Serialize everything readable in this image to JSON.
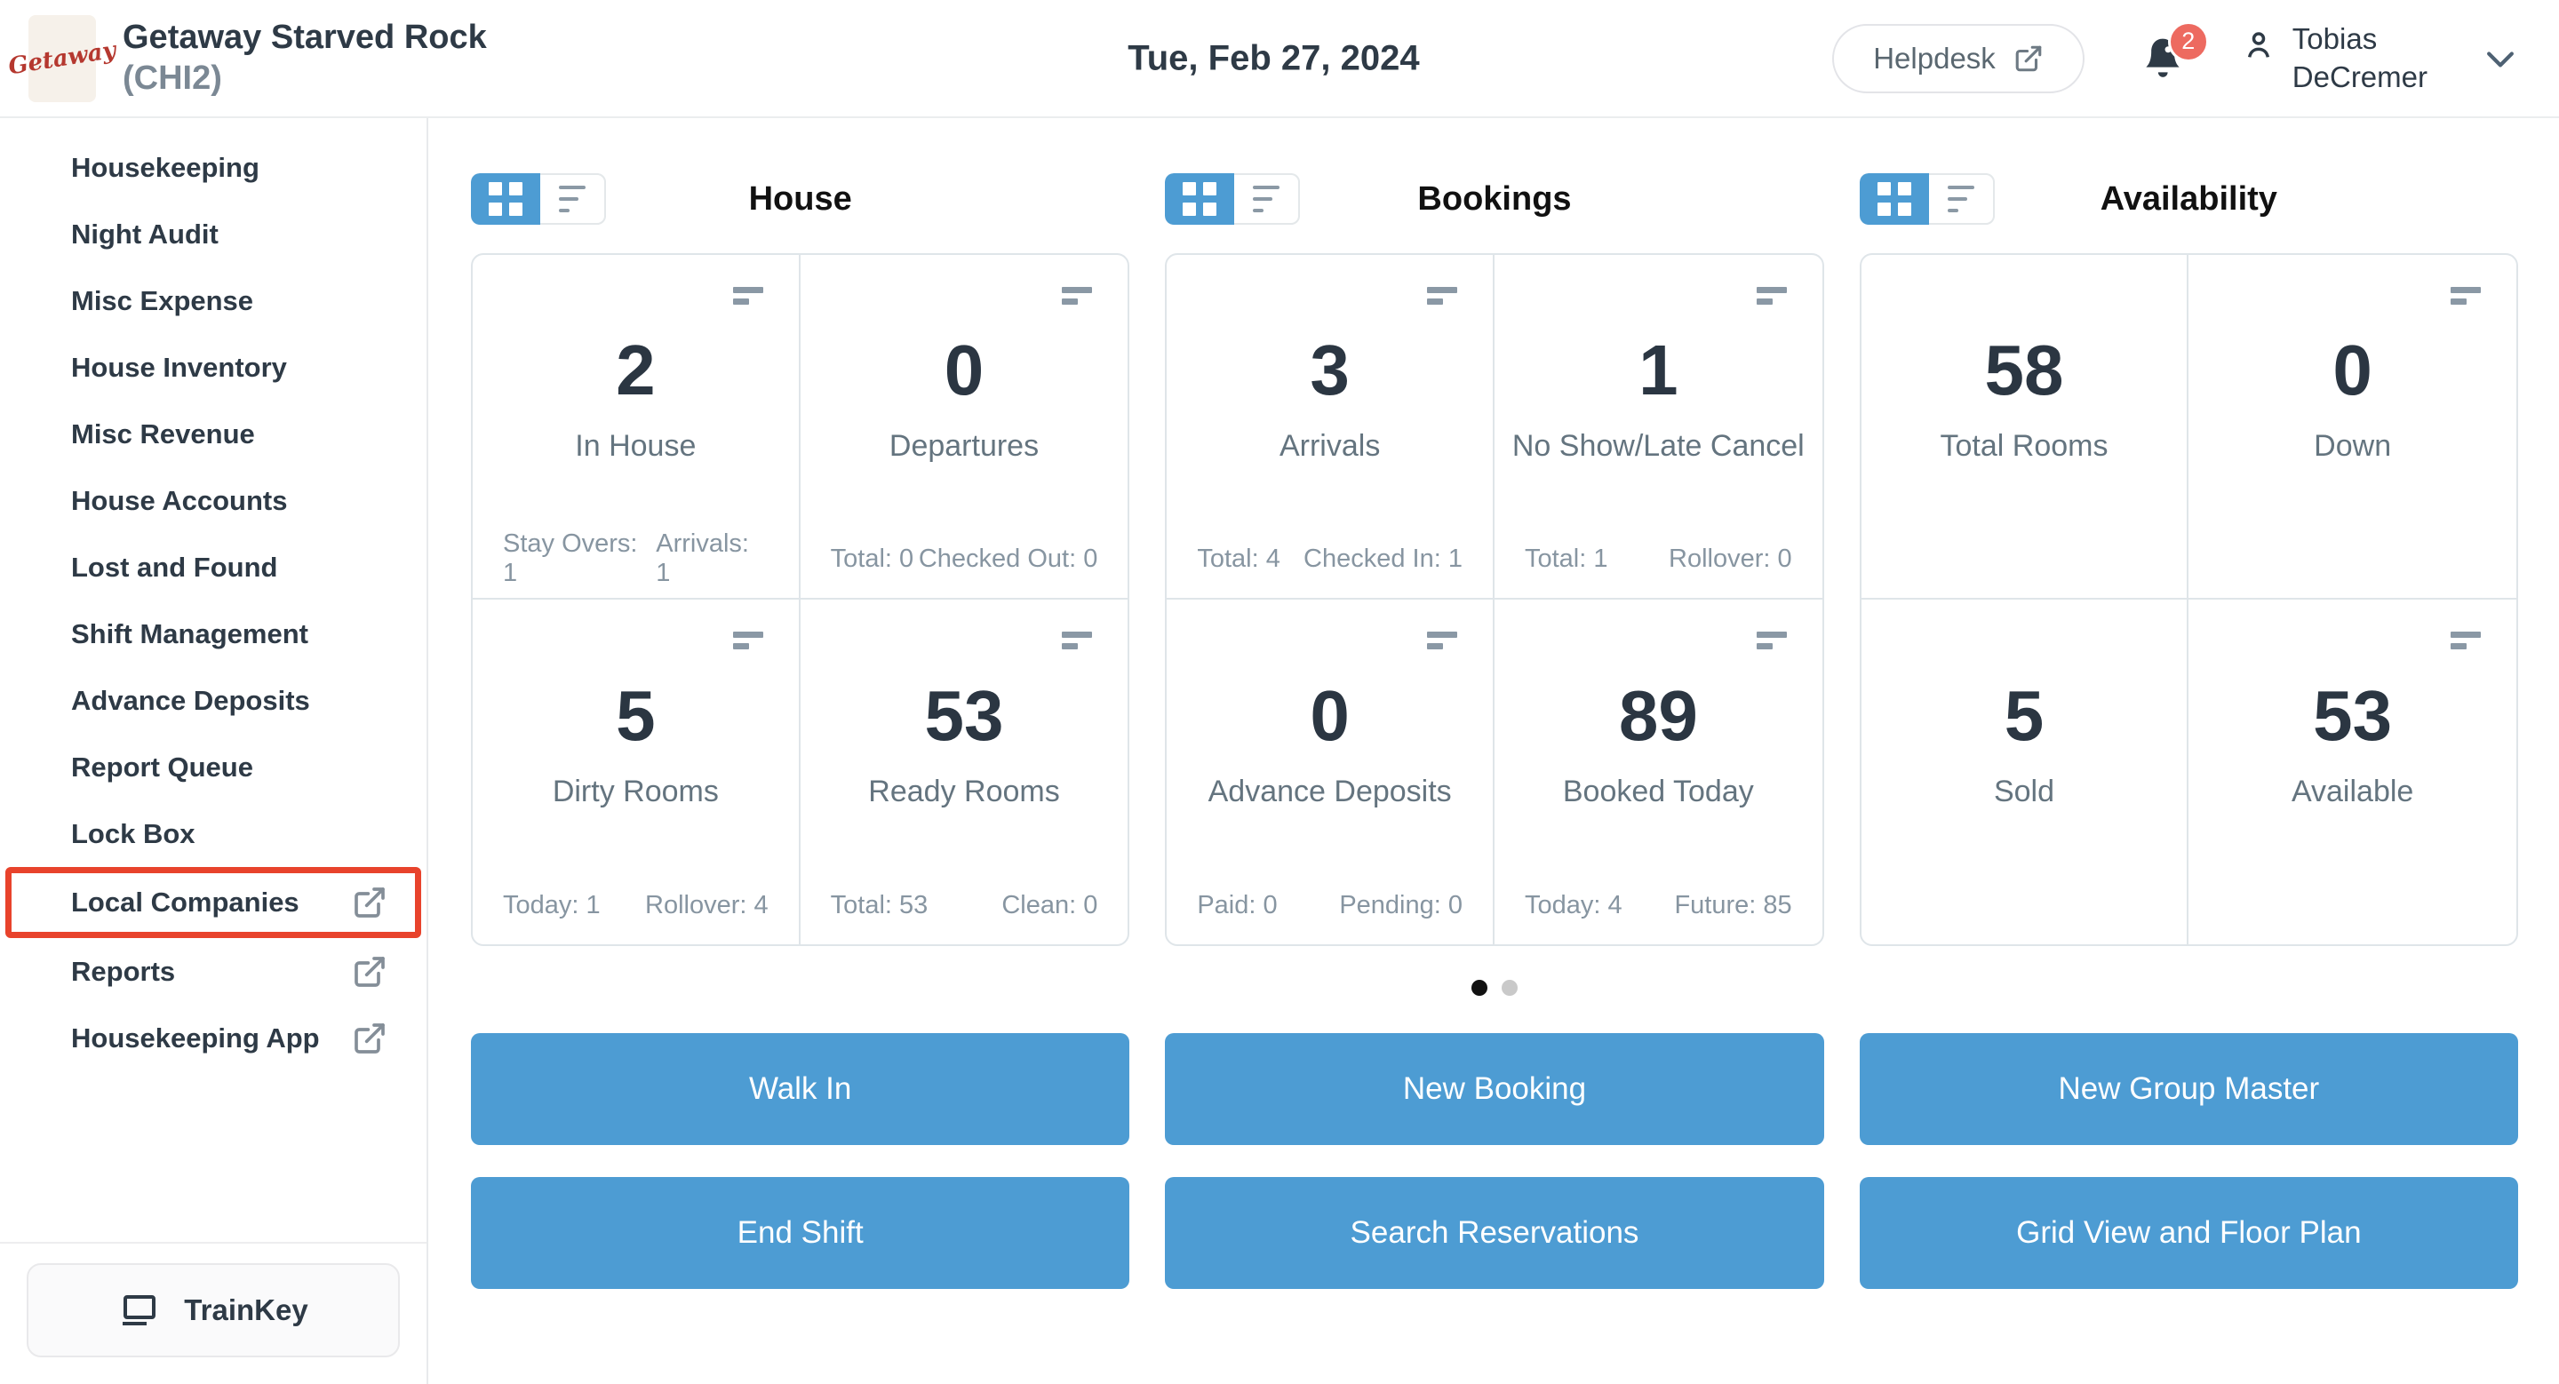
{
  "colors": {
    "accent_blue": "#4D9CD3",
    "highlight_red": "#E8432C",
    "badge_red": "#ED6A60",
    "logo_red": "#B5382F"
  },
  "header": {
    "logo_text": "Getaway",
    "property_name": "Getaway Starved Rock",
    "property_code": "(CHI2)",
    "date": "Tue, Feb 27, 2024",
    "helpdesk_label": "Helpdesk",
    "notification_count": "2",
    "user_name_line1": "Tobias",
    "user_name_line2": "DeCremer"
  },
  "sidebar": {
    "items": [
      {
        "label": "Housekeeping",
        "external": false,
        "highlighted": false
      },
      {
        "label": "Night Audit",
        "external": false,
        "highlighted": false
      },
      {
        "label": "Misc Expense",
        "external": false,
        "highlighted": false
      },
      {
        "label": "House Inventory",
        "external": false,
        "highlighted": false
      },
      {
        "label": "Misc Revenue",
        "external": false,
        "highlighted": false
      },
      {
        "label": "House Accounts",
        "external": false,
        "highlighted": false
      },
      {
        "label": "Lost and Found",
        "external": false,
        "highlighted": false
      },
      {
        "label": "Shift Management",
        "external": false,
        "highlighted": false
      },
      {
        "label": "Advance Deposits",
        "external": false,
        "highlighted": false
      },
      {
        "label": "Report Queue",
        "external": false,
        "highlighted": false
      },
      {
        "label": "Lock Box",
        "external": false,
        "highlighted": false
      },
      {
        "label": "Local Companies",
        "external": true,
        "highlighted": true
      },
      {
        "label": "Reports",
        "external": true,
        "highlighted": false
      },
      {
        "label": "Housekeeping App",
        "external": true,
        "highlighted": false
      }
    ],
    "trainkey_label": "TrainKey"
  },
  "dashboard": {
    "sections": [
      {
        "title": "House",
        "cards": [
          {
            "value": "2",
            "label": "In House",
            "icon": true,
            "stats": [
              "Stay Overs: 1",
              "Arrivals: 1"
            ]
          },
          {
            "value": "0",
            "label": "Departures",
            "icon": true,
            "stats": [
              "Total: 0",
              "Checked Out: 0"
            ]
          },
          {
            "value": "5",
            "label": "Dirty Rooms",
            "icon": true,
            "stats": [
              "Today: 1",
              "Rollover: 4"
            ]
          },
          {
            "value": "53",
            "label": "Ready Rooms",
            "icon": true,
            "stats": [
              "Total: 53",
              "Clean: 0"
            ]
          }
        ]
      },
      {
        "title": "Bookings",
        "cards": [
          {
            "value": "3",
            "label": "Arrivals",
            "icon": true,
            "stats": [
              "Total: 4",
              "Checked In: 1"
            ]
          },
          {
            "value": "1",
            "label": "No Show/Late Cancel",
            "icon": true,
            "stats": [
              "Total: 1",
              "Rollover: 0"
            ]
          },
          {
            "value": "0",
            "label": "Advance Deposits",
            "icon": true,
            "stats": [
              "Paid: 0",
              "Pending: 0"
            ]
          },
          {
            "value": "89",
            "label": "Booked Today",
            "icon": true,
            "stats": [
              "Today: 4",
              "Future: 85"
            ]
          }
        ]
      },
      {
        "title": "Availability",
        "cards": [
          {
            "value": "58",
            "label": "Total Rooms",
            "icon": false,
            "stats": []
          },
          {
            "value": "0",
            "label": "Down",
            "icon": true,
            "stats": []
          },
          {
            "value": "5",
            "label": "Sold",
            "icon": false,
            "stats": []
          },
          {
            "value": "53",
            "label": "Available",
            "icon": true,
            "stats": []
          }
        ]
      }
    ],
    "pagination": {
      "count": 2,
      "active_index": 0
    },
    "action_columns": [
      [
        "Walk In",
        "End Shift"
      ],
      [
        "New Booking",
        "Search Reservations"
      ],
      [
        "New Group Master",
        "Grid View and Floor Plan"
      ]
    ]
  }
}
